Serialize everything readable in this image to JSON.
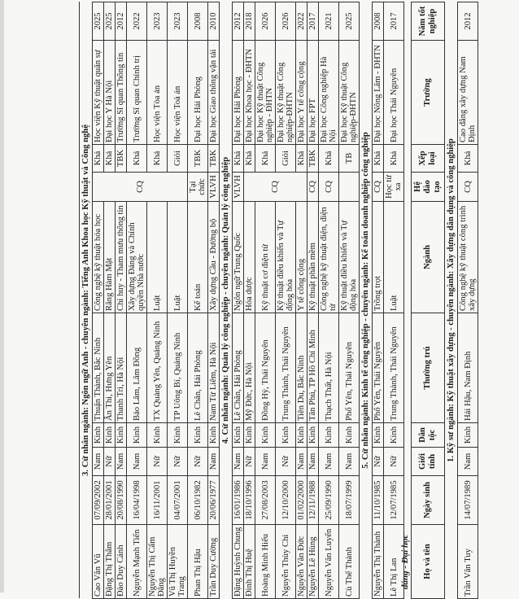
{
  "header": {
    "name": "Họ và tên",
    "dob": "Ngày sinh",
    "gender": "Giới tính",
    "ethnic": "Dân tộc",
    "address": "Thường trú",
    "major": "Ngành",
    "mode": "Hệ đào tạo",
    "rank": "Xếp loại",
    "school": "Trường",
    "year": "Năm tốt nghiệp"
  },
  "section_title_2": "đẳng - Đại học",
  "table1": [
    {
      "heading": "3. Cử nhân ngành: Ngôn ngữ Anh - chuyên ngành: Tiếng Anh Khoa học Kỹ thuật và Công nghệ",
      "rows": [
        [
          "Cao Văn Vũ",
          "07/09/2002",
          "Nam",
          "Kinh",
          "Thuận Thành, Bắc Ninh",
          "Công nghệ kỹ thuật hóa học",
          "CQ",
          "Khá",
          "Học viện Kỹ thuật quân sự",
          "2025"
        ],
        [
          "Đặng Thị Thắm",
          "28/01/2001",
          "Nữ",
          "Kinh",
          "Ân Thi, Hưng Yên",
          "Răng Hàm Mặt",
          "",
          "Khá",
          "Đại học Y Hà Nội",
          "2025"
        ],
        [
          "Đào Duy Cảnh",
          "20/08/1990",
          "Nam",
          "Kinh",
          "Thanh Trì, Hà Nội",
          "Chỉ huy - Tham mưu thông tin",
          "",
          "TBK",
          "Trường Sĩ quan Thông tin",
          "2012"
        ],
        [
          "Nguyễn Mạnh Tiến",
          "16/04/1998",
          "Nam",
          "Kinh",
          "Bảo Lâm, Lâm Đồng",
          "Xây dựng Đảng và Chính quyền Nhà nước",
          "",
          "Khá",
          "Trường Sĩ quan Chính trị",
          "2022"
        ],
        [
          "Nguyễn Thị Cẩm Đăng",
          "16/11/2001",
          "Nữ",
          "Kinh",
          "TX Quảng Yên, Quảng Ninh",
          "Luật",
          "",
          "Khá",
          "Học viện Tòa án",
          "2023"
        ],
        [
          "Vũ Thị Huyền Trang",
          "04/07/2001",
          "Nữ",
          "Kinh",
          "TP Uông Bí, Quảng Ninh",
          "Luật",
          "",
          "Giỏi",
          "Học viện Toà án",
          "2023"
        ],
        [
          "Phan Thị Hậu",
          "06/10/1982",
          "Nữ",
          "Kinh",
          "Lê Chân, Hải Phòng",
          "Kế toán",
          "Tại chức",
          "TBK",
          "Đại học Hải Phòng",
          "2008"
        ],
        [
          "Trần Duy Cường",
          "20/06/1977",
          "Nam",
          "Kinh",
          "Nam Từ Liêm, Hà Nội",
          "Xây dựng Cầu - Đường bộ",
          "VLVH",
          "TBK",
          "Đại học Giao thông vận tải",
          "2010"
        ]
      ]
    },
    {
      "heading": "4. Cử nhân ngành: Quản lý công nghiệp - chuyên ngành: Quản lý công nghiệp",
      "rows": [
        [
          "Đặng Huỳnh Chung",
          "16/01/1986",
          "Nam",
          "Kinh",
          "Lê Chân, Hải Phòng",
          "Ngôn ngữ Trung Quốc",
          "VLVH",
          "Khá",
          "Đại học Hải Phòng",
          "2012"
        ],
        [
          "Đinh Thị Huệ",
          "18/10/1996",
          "Nữ",
          "Kinh",
          "Mỹ Đức, Hà Nội",
          "Hóa dược",
          "CQ",
          "Khá",
          "Đại học Khoa học - ĐHTN",
          "2018"
        ],
        [
          "Hoàng Minh Hiếu",
          "27/08/2003",
          "Nam",
          "Kinh",
          "Đồng Hỷ, Thái Nguyên",
          "Kỹ thuật cơ điện tử",
          "",
          "Khá",
          "Đại học Kỹ thuật Công nghiệp - ĐHTN",
          "2026"
        ],
        [
          "Nguyễn Thùy Chi",
          "12/10/2000",
          "Nữ",
          "Kinh",
          "Trung Thành, Thái Nguyên",
          "Kỹ thuật điều khiển và Tự động hóa",
          "",
          "Giỏi",
          "Đại học Kỹ thuật Công nghiệp-ĐHTN",
          "2026"
        ],
        [
          "Nguyễn Văn Đức",
          "01/02/2000",
          "Nam",
          "Kinh",
          "Tiên Du, Bắc Ninh",
          "Y tế công cộng",
          "",
          "Khá",
          "Đại học Y tế công cộng",
          "2022"
        ],
        [
          "Nguyễn Lê Hùng",
          "12/11/1988",
          "Nam",
          "Kinh",
          "Tân Phú, TP Hồ Chí Minh",
          "Kỹ thuật phần mềm",
          "CQ",
          "TBK",
          "Đại học FPT",
          "2017"
        ],
        [
          "Nguyễn Văn Luyến",
          "25/09/1990",
          "Nam",
          "Kinh",
          "Thạch Thất, Hà Nội",
          "Công nghệ kỹ thuật điện, điện tử",
          "CQ",
          "Khá",
          "Đại học Công nghiệp Hà Nội",
          "2021"
        ],
        [
          "Cù Thế Thành",
          "18/07/1999",
          "Nam",
          "Kinh",
          "Phổ Yên, Thái Nguyên",
          "Kỹ thuật điều khiển và Tự động hóa",
          "",
          "TB",
          "Đại học Kỹ thuật Công nghiệp-ĐHTN",
          "2025"
        ]
      ]
    },
    {
      "heading": "5. Cử nhân ngành: Kinh tế công nghiệp - chuyên ngành: Kế toán doanh nghiệp công nghiệp",
      "rows": [
        [
          "Nguyễn Thị Thành",
          "11/10/1985",
          "Nữ",
          "Kinh",
          "Phổ Yên, Thái Nguyên",
          "Trồng trọt",
          "CQ",
          "Khá",
          "Đại học Nông Lâm - ĐHTN",
          "2008"
        ],
        [
          "Lê Thị Lan",
          "12/07/1985",
          "Nữ",
          "Kinh",
          "Trung Thành, Thái Nguyên",
          "Luật",
          "Học từ xa",
          "Khá",
          "Đại học Thái Nguyên",
          "2017"
        ]
      ]
    }
  ],
  "table2": [
    {
      "heading": "1. Kỹ sư ngành: Kỹ thuật xây dựng - chuyên ngành: Xây dựng dân dụng và công nghiệp",
      "rows": [
        [
          "Trần Văn Tuy",
          "14/07/1989",
          "Nam",
          "Kinh",
          "Hải Hậu, Nam Định",
          "Công nghệ kỹ thuật công trình xây dựng",
          "CQ",
          "Khá",
          "Cao đẳng xây dựng Nam Định",
          "2012"
        ]
      ]
    }
  ]
}
